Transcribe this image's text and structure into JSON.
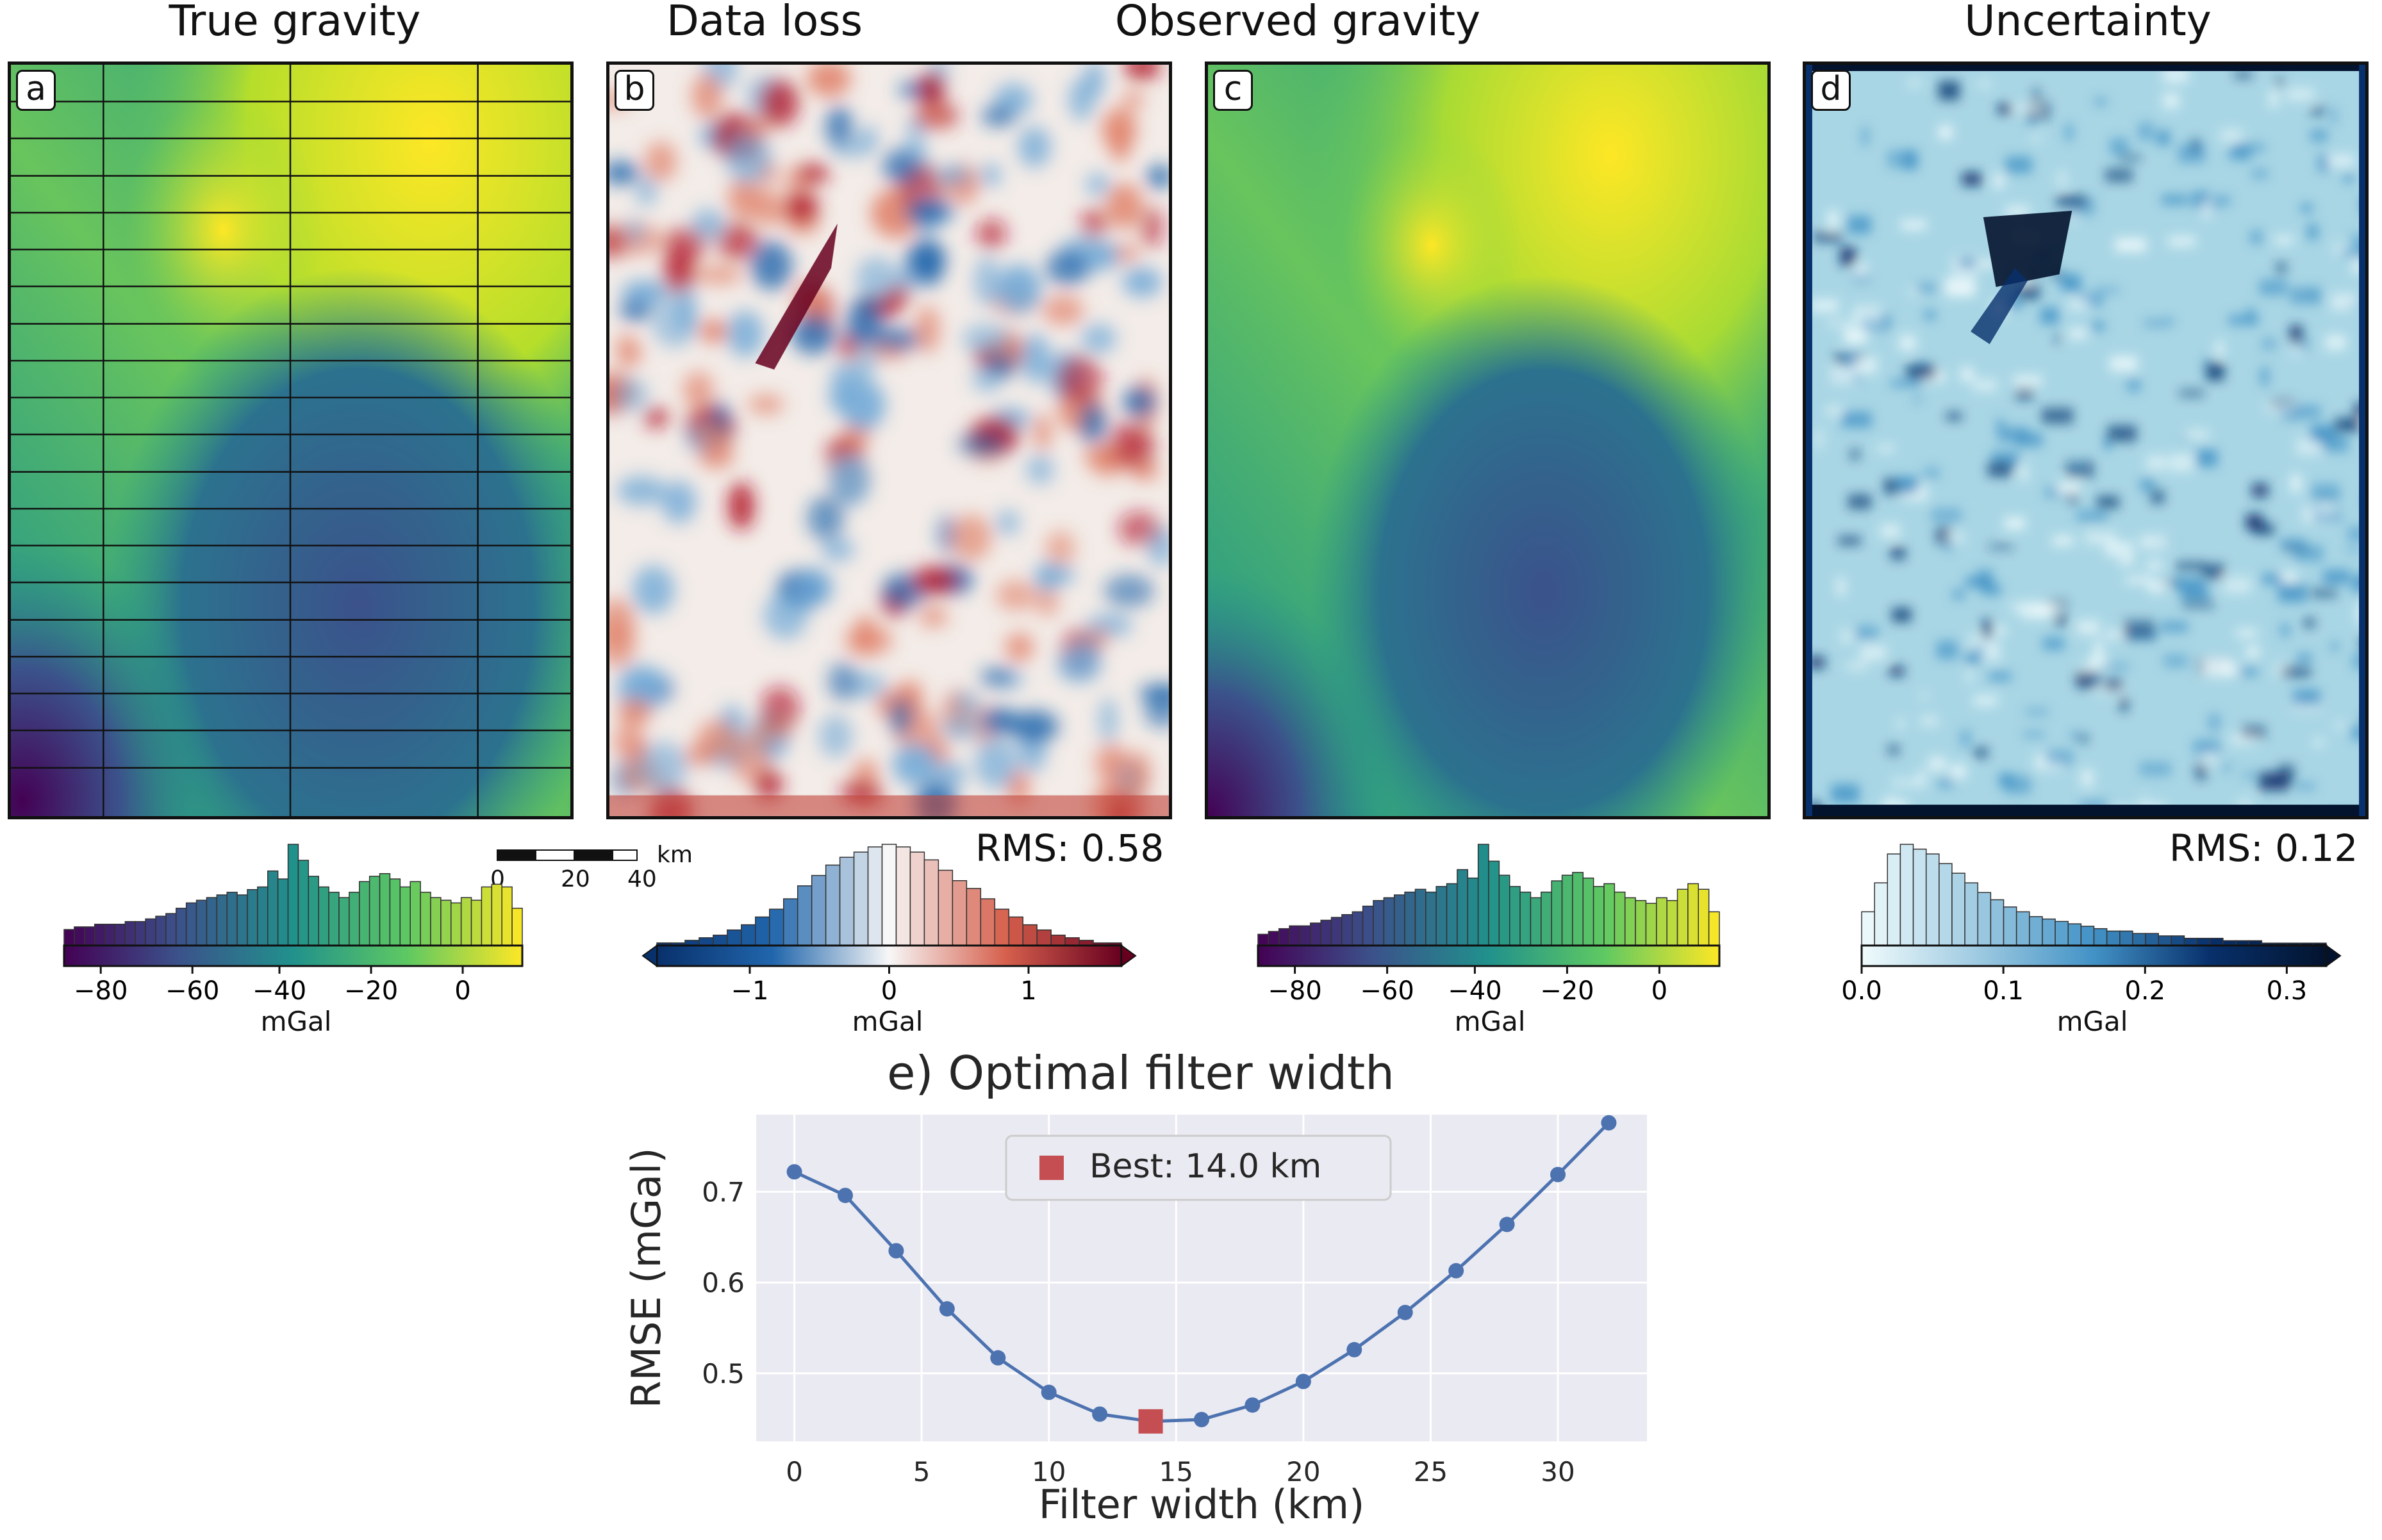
{
  "panels": [
    {
      "letter": "a",
      "title": "True gravity",
      "cmap": "viridis",
      "cbar_ticks": [
        "−80",
        "−60",
        "−40",
        "−20",
        "0"
      ],
      "cbar_unit": "mGal",
      "rms": ""
    },
    {
      "letter": "b",
      "title": "Data loss",
      "cmap": "rdbu",
      "cbar_ticks": [
        "−1",
        "0",
        "1"
      ],
      "cbar_unit": "mGal",
      "rms": "RMS: 0.58"
    },
    {
      "letter": "c",
      "title": "Observed gravity",
      "cmap": "viridis",
      "cbar_ticks": [
        "−80",
        "−60",
        "−40",
        "−20",
        "0"
      ],
      "cbar_unit": "mGal",
      "rms": ""
    },
    {
      "letter": "d",
      "title": "Uncertainty",
      "cmap": "blues",
      "cbar_ticks": [
        "0.0",
        "0.1",
        "0.2",
        "0.3"
      ],
      "cbar_unit": "mGal",
      "rms": "RMS: 0.12"
    }
  ],
  "scalebar": {
    "ticks": [
      "0",
      "20",
      "40"
    ],
    "unit": "km"
  },
  "colors": {
    "viridis": [
      "#440154",
      "#3b528b",
      "#21918c",
      "#5ec962",
      "#fde725"
    ],
    "rdbu": [
      "#08306b",
      "#2166ac",
      "#f7f7f7",
      "#d6604d",
      "#67001f"
    ],
    "blues": [
      "#f0fbfc",
      "#9ecae1",
      "#4292c6",
      "#08306b",
      "#03132e"
    ],
    "line": "#4c72b0",
    "best": "#c44e52",
    "bg": "#eaeaf2"
  },
  "chart_data": {
    "type": "line",
    "title": "e) Optimal filter width",
    "xlabel": "Filter width (km)",
    "ylabel": "RMSE (mGal)",
    "xlim": [
      -1.5,
      33.5
    ],
    "ylim": [
      0.425,
      0.785
    ],
    "xticks": [
      0,
      5,
      10,
      15,
      20,
      25,
      30
    ],
    "yticks": [
      0.5,
      0.6,
      0.7
    ],
    "grid": true,
    "legend_position": "top-center",
    "series": [
      {
        "x": [
          0,
          2,
          4,
          6,
          8,
          10,
          12,
          14,
          16,
          18,
          20,
          22,
          24,
          26,
          28,
          30,
          32
        ],
        "y": [
          0.722,
          0.696,
          0.635,
          0.571,
          0.517,
          0.479,
          0.455,
          0.447,
          0.449,
          0.465,
          0.491,
          0.526,
          0.567,
          0.613,
          0.664,
          0.719,
          0.776
        ]
      }
    ],
    "best": {
      "name": "Best: 14.0 km",
      "x": 14,
      "y": 0.447
    }
  }
}
